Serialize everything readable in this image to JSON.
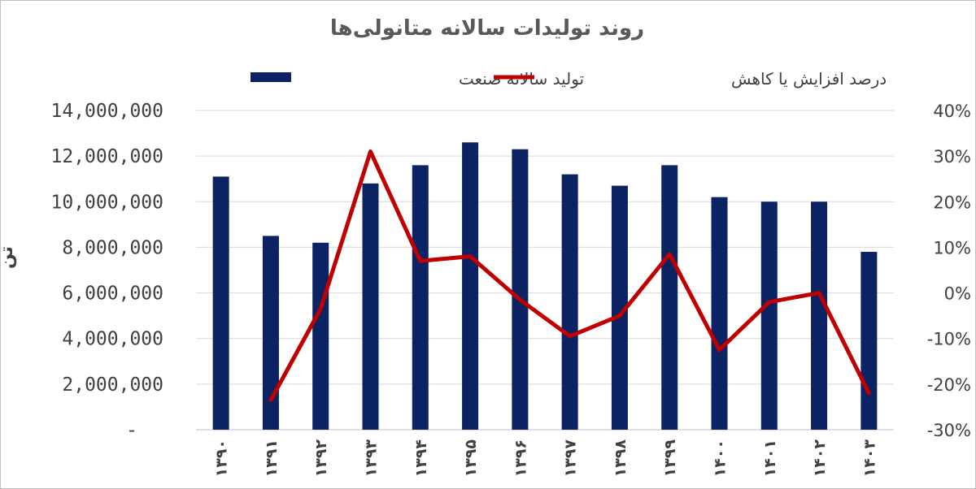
{
  "chart_data": {
    "type": "bar",
    "title": "روند تولیدات سالانه متانولی‌ها",
    "ylabel": "تن",
    "categories": [
      "۱۳۹۰",
      "۱۳۹۱",
      "۱۳۹۲",
      "۱۳۹۳",
      "۱۳۹۴",
      "۱۳۹۵",
      "۱۳۹۶",
      "۱۳۹۷",
      "۱۳۹۸",
      "۱۳۹۹",
      "۱۴۰۰",
      "۱۴۰۱",
      "۱۴۰۲",
      "۱۴۰۳"
    ],
    "series": [
      {
        "name": "تولید سالانه صنعت",
        "type": "bar",
        "axis": "left",
        "color": "#0b2263",
        "values": [
          11100000,
          8500000,
          8200000,
          10800000,
          11600000,
          12600000,
          12300000,
          11200000,
          10700000,
          11600000,
          10200000,
          10000000,
          10000000,
          7800000
        ]
      },
      {
        "name": "درصد افزایش یا کاهش",
        "type": "line",
        "axis": "right",
        "color": "#c00000",
        "values": [
          null,
          -23.5,
          -3.5,
          31,
          7,
          8,
          -1.5,
          -9.5,
          -5,
          8.5,
          -12.5,
          -2,
          0,
          -22
        ]
      }
    ],
    "ylim": [
      0,
      14000000
    ],
    "y2lim": [
      -30,
      40
    ],
    "yticks": [
      "-",
      "2,000,000",
      "4,000,000",
      "6,000,000",
      "8,000,000",
      "10,000,000",
      "12,000,000",
      "14,000,000"
    ],
    "y2ticks": [
      "-30%",
      "-20%",
      "-10%",
      "0%",
      "10%",
      "20%",
      "30%",
      "40%"
    ],
    "legend_position": "top",
    "grid": true
  }
}
